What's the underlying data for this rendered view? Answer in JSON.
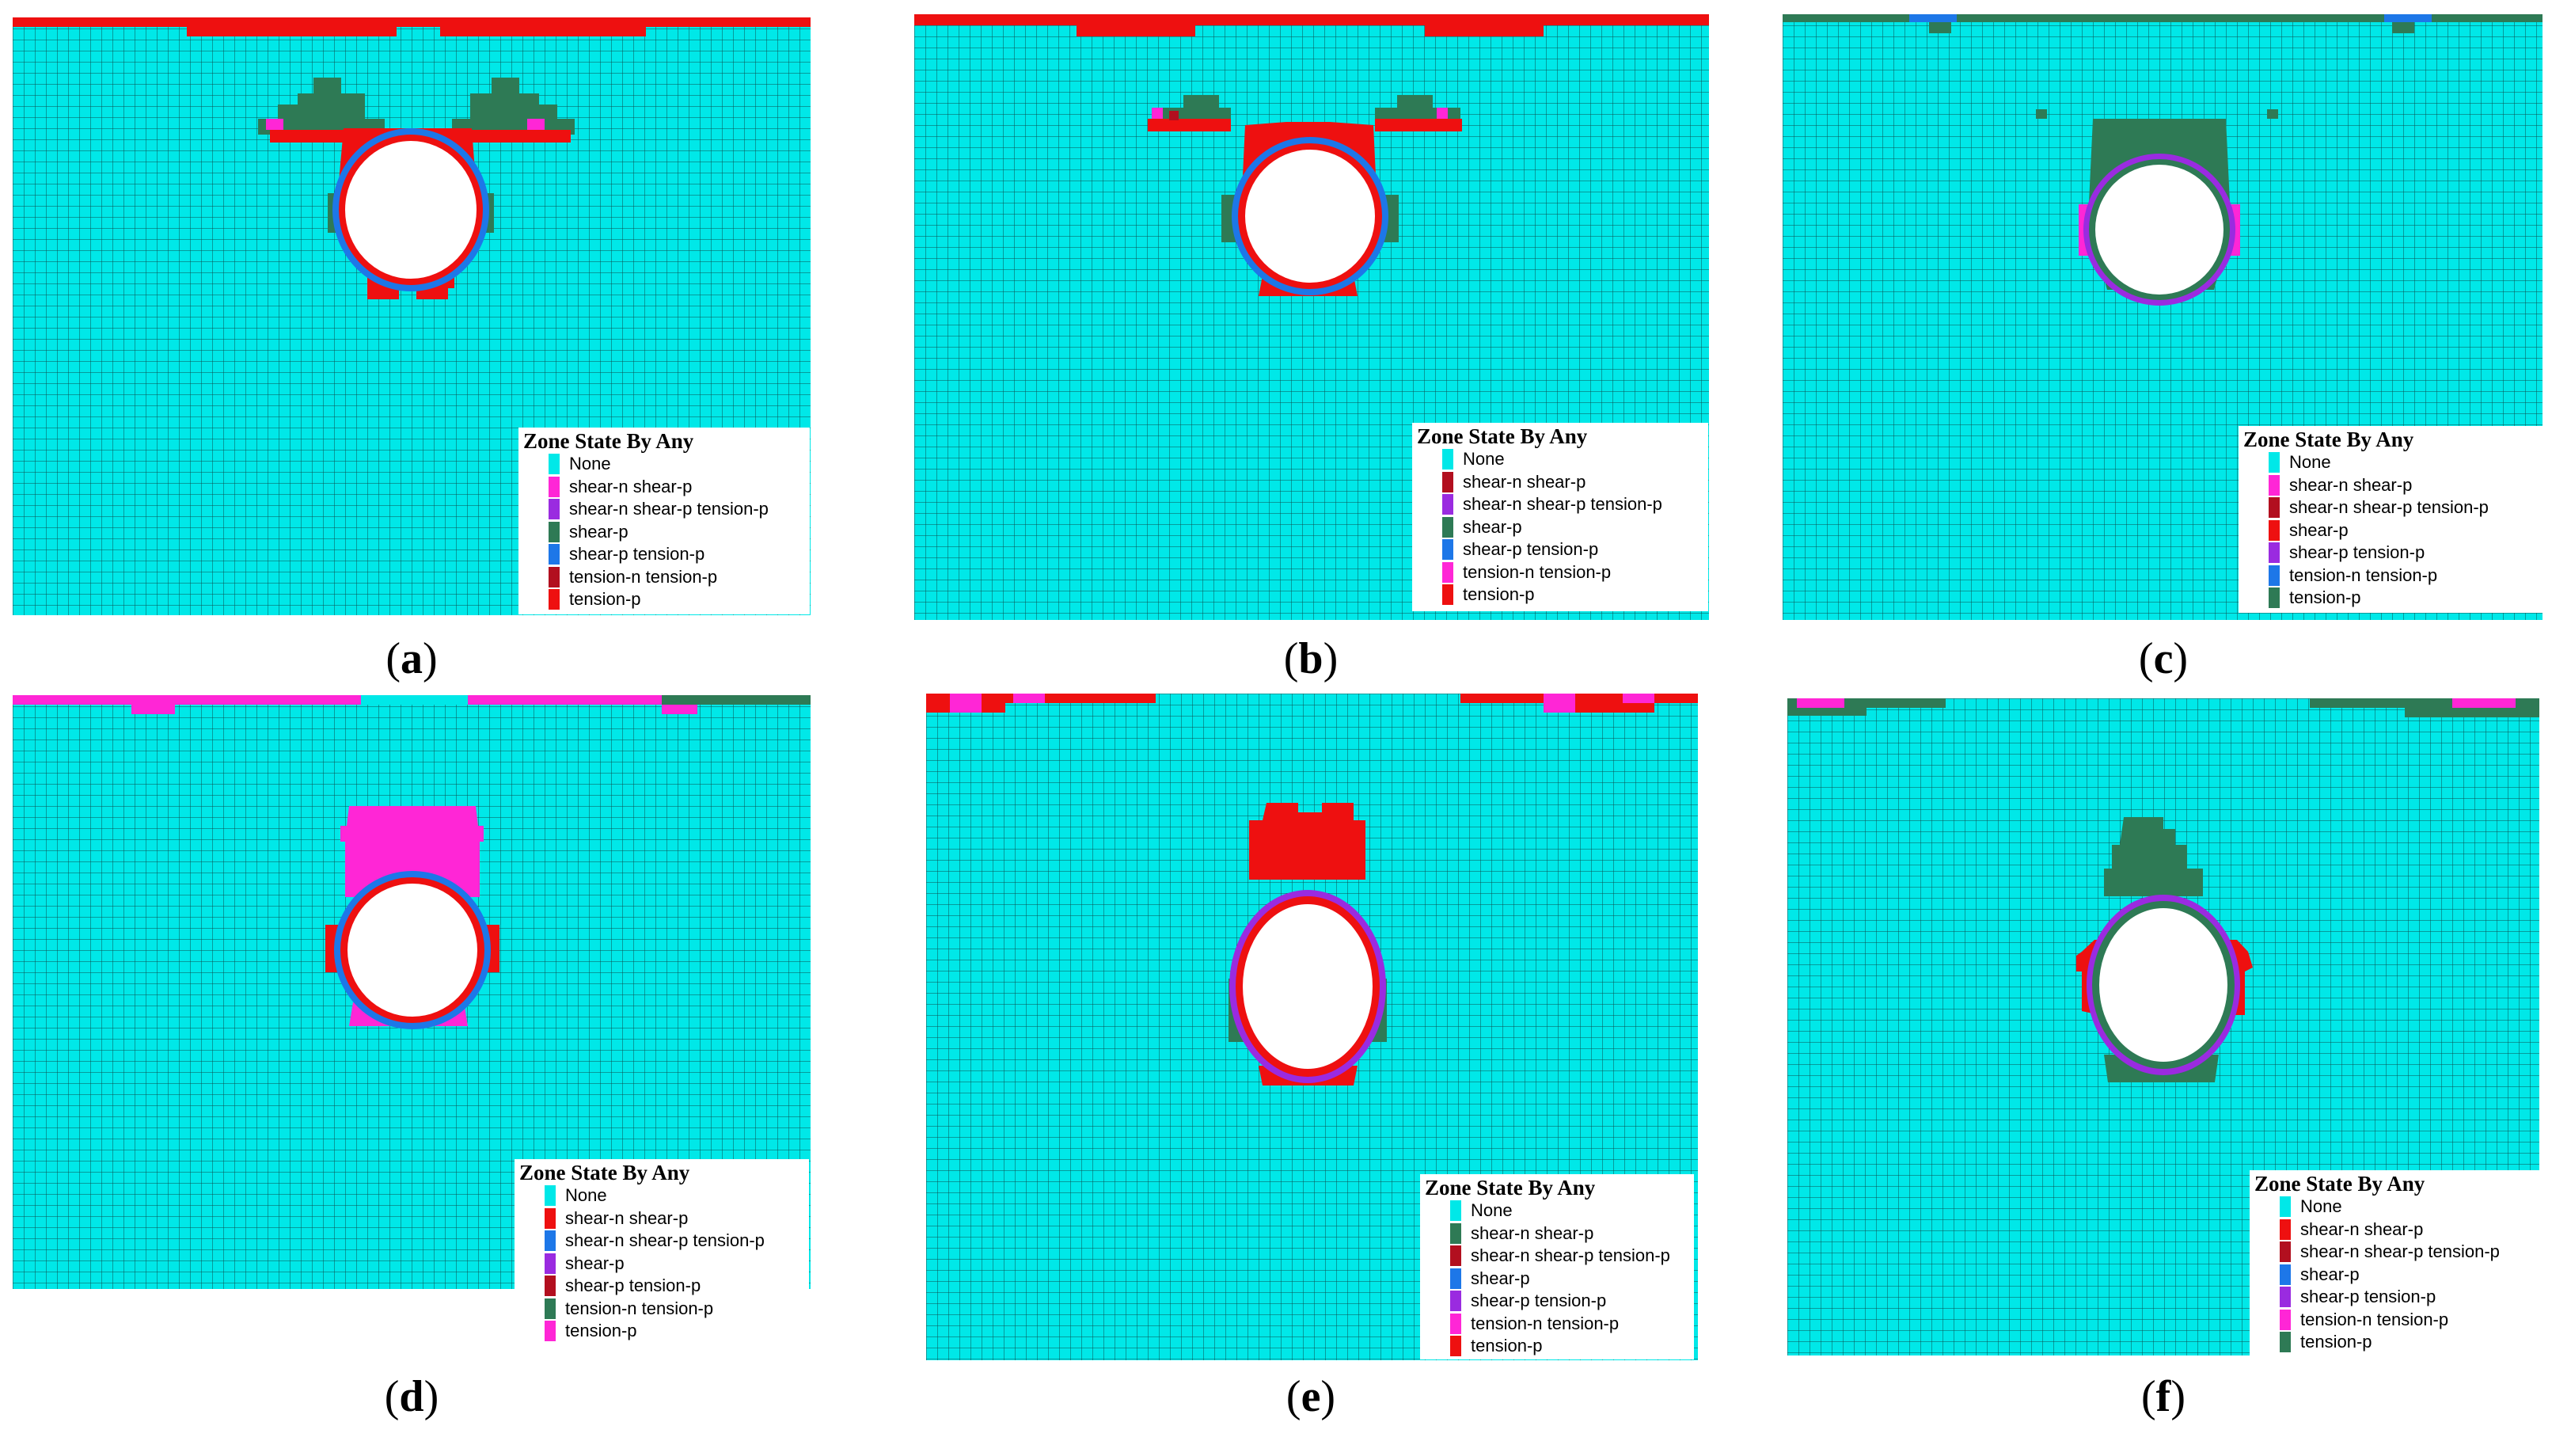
{
  "colors": {
    "background": "#00e8e8",
    "grid": "#0d4f4f",
    "tunnel": "#ffffff",
    "red": "#ee1010",
    "dark_red": "#b20f1f",
    "magenta": "#ff26d6",
    "purple": "#9a2be0",
    "green": "#2e7a55",
    "blue": "#1d77e8",
    "cyan": "#00e8e8"
  },
  "panels": [
    {
      "id": "a",
      "caption": "a",
      "legend": {
        "title": "Zone State By Any",
        "items": [
          {
            "label": "None",
            "color": "#00e8e8"
          },
          {
            "label": "shear-n shear-p",
            "color": "#ff26d6"
          },
          {
            "label": "shear-n shear-p tension-p",
            "color": "#9a2be0"
          },
          {
            "label": "shear-p",
            "color": "#2e7a55"
          },
          {
            "label": "shear-p tension-p",
            "color": "#1d77e8"
          },
          {
            "label": "tension-n tension-p",
            "color": "#b20f1f"
          },
          {
            "label": "tension-p",
            "color": "#ee1010"
          }
        ]
      }
    },
    {
      "id": "b",
      "caption": "b",
      "legend": {
        "title": "Zone State By Any",
        "items": [
          {
            "label": "None",
            "color": "#00e8e8"
          },
          {
            "label": "shear-n shear-p",
            "color": "#b20f1f"
          },
          {
            "label": "shear-n shear-p tension-p",
            "color": "#9a2be0"
          },
          {
            "label": "shear-p",
            "color": "#2e7a55"
          },
          {
            "label": "shear-p tension-p",
            "color": "#1d77e8"
          },
          {
            "label": "tension-n tension-p",
            "color": "#ff26d6"
          },
          {
            "label": "tension-p",
            "color": "#ee1010"
          }
        ]
      }
    },
    {
      "id": "c",
      "caption": "c",
      "legend": {
        "title": "Zone State By Any",
        "items": [
          {
            "label": "None",
            "color": "#00e8e8"
          },
          {
            "label": "shear-n shear-p",
            "color": "#ff26d6"
          },
          {
            "label": "shear-n shear-p tension-p",
            "color": "#b20f1f"
          },
          {
            "label": "shear-p",
            "color": "#ee1010"
          },
          {
            "label": "shear-p tension-p",
            "color": "#9a2be0"
          },
          {
            "label": "tension-n tension-p",
            "color": "#1d77e8"
          },
          {
            "label": "tension-p",
            "color": "#2e7a55"
          }
        ]
      }
    },
    {
      "id": "d",
      "caption": "d",
      "legend": {
        "title": "Zone State By Any",
        "items": [
          {
            "label": "None",
            "color": "#00e8e8"
          },
          {
            "label": "shear-n shear-p",
            "color": "#ee1010"
          },
          {
            "label": "shear-n shear-p tension-p",
            "color": "#1d77e8"
          },
          {
            "label": "shear-p",
            "color": "#9a2be0"
          },
          {
            "label": "shear-p tension-p",
            "color": "#b20f1f"
          },
          {
            "label": "tension-n tension-p",
            "color": "#2e7a55"
          },
          {
            "label": "tension-p",
            "color": "#ff26d6"
          }
        ]
      }
    },
    {
      "id": "e",
      "caption": "e",
      "legend": {
        "title": "Zone State By Any",
        "items": [
          {
            "label": "None",
            "color": "#00e8e8"
          },
          {
            "label": "shear-n shear-p",
            "color": "#2e7a55"
          },
          {
            "label": "shear-n shear-p tension-p",
            "color": "#b20f1f"
          },
          {
            "label": "shear-p",
            "color": "#1d77e8"
          },
          {
            "label": "shear-p tension-p",
            "color": "#9a2be0"
          },
          {
            "label": "tension-n tension-p",
            "color": "#ff26d6"
          },
          {
            "label": "tension-p",
            "color": "#ee1010"
          }
        ]
      }
    },
    {
      "id": "f",
      "caption": "f",
      "legend": {
        "title": "Zone State By Any",
        "items": [
          {
            "label": "None",
            "color": "#00e8e8"
          },
          {
            "label": "shear-n shear-p",
            "color": "#ee1010"
          },
          {
            "label": "shear-n shear-p tension-p",
            "color": "#b20f1f"
          },
          {
            "label": "shear-p",
            "color": "#1d77e8"
          },
          {
            "label": "shear-p tension-p",
            "color": "#9a2be0"
          },
          {
            "label": "tension-n tension-p",
            "color": "#ff26d6"
          },
          {
            "label": "tension-p",
            "color": "#2e7a55"
          }
        ]
      }
    }
  ]
}
